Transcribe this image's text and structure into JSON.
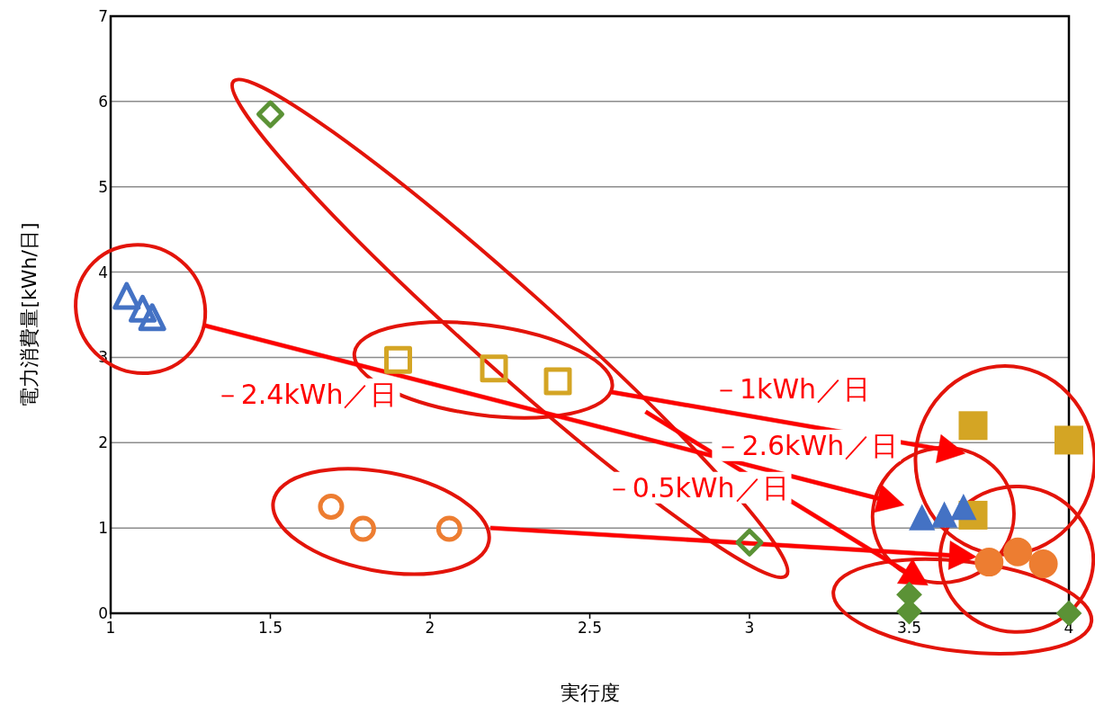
{
  "chart_data": {
    "type": "scatter",
    "xlabel": "実行度",
    "ylabel": "電力消費量[kWh/日]",
    "xlim": [
      1,
      4
    ],
    "xticks": [
      1,
      1.5,
      2,
      2.5,
      3,
      3.5,
      4
    ],
    "ylim": [
      0,
      7
    ],
    "yticks": [
      0,
      1,
      2,
      3,
      4,
      5,
      6,
      7
    ],
    "grid": "y",
    "annotations": [
      "－2.4kWh／日",
      "－1kWh／日",
      "－2.6kWh／日",
      "－0.5kWh／日"
    ],
    "series": [
      {
        "color": "#4472c4",
        "marker": "triangle",
        "x": [
          1.05,
          1.1,
          1.13
        ],
        "values": [
          3.7,
          3.55,
          3.45
        ]
      },
      {
        "color": "#d4a524",
        "marker": "square",
        "x": [
          1.9,
          2.2,
          2.4
        ],
        "values": [
          2.97,
          2.87,
          2.72
        ]
      },
      {
        "color": "#5b9236",
        "marker": "diamond",
        "x": [
          1.5,
          3.0
        ],
        "values": [
          5.85,
          0.83
        ]
      },
      {
        "color": "#ed7d31",
        "marker": "circle",
        "x": [
          1.69,
          1.79,
          2.06
        ],
        "values": [
          1.25,
          0.99,
          0.99
        ]
      },
      {
        "color": "#d4a524",
        "marker": "square",
        "x": [
          3.7,
          4.0,
          3.7
        ],
        "values": [
          2.2,
          2.03,
          1.15
        ]
      },
      {
        "color": "#4472c4",
        "marker": "triangle",
        "x": [
          3.54,
          3.61,
          3.67
        ],
        "values": [
          1.1,
          1.13,
          1.22
        ]
      },
      {
        "color": "#ed7d31",
        "marker": "circle",
        "x": [
          3.75,
          3.84,
          3.92
        ],
        "values": [
          0.6,
          0.72,
          0.58
        ]
      },
      {
        "color": "#5b9236",
        "marker": "diamond",
        "x": [
          3.5,
          3.5,
          4.0
        ],
        "values": [
          0.22,
          0.02,
          0.0
        ]
      }
    ]
  }
}
